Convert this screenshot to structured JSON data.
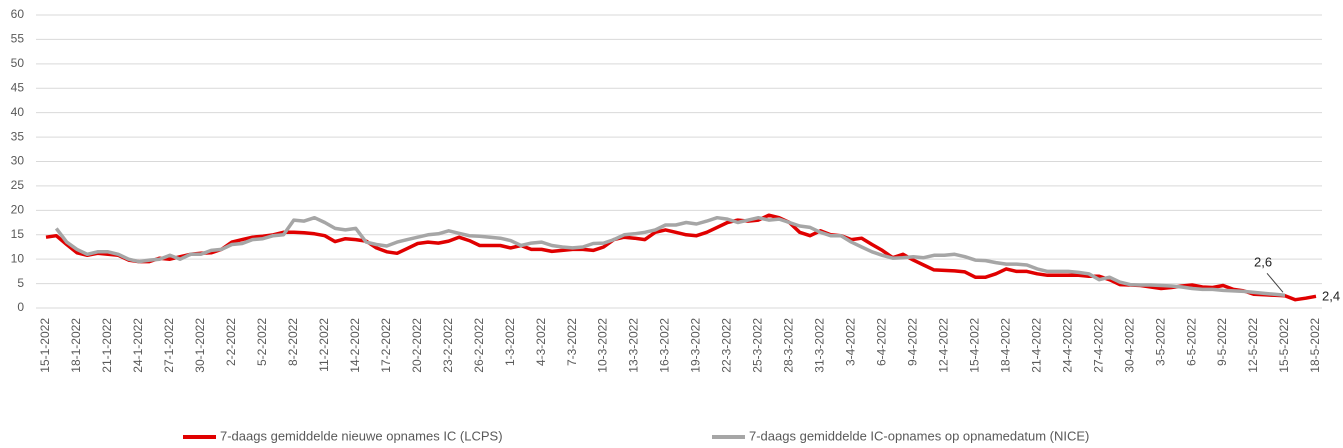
{
  "chart_data": {
    "type": "line",
    "categories": [
      "15-1-2022",
      null,
      null,
      "18-1-2022",
      null,
      null,
      "21-1-2022",
      null,
      null,
      "24-1-2022",
      null,
      null,
      "27-1-2022",
      null,
      null,
      "30-1-2022",
      null,
      null,
      "2-2-2022",
      null,
      null,
      "5-2-2022",
      null,
      null,
      "8-2-2022",
      null,
      null,
      "11-2-2022",
      null,
      null,
      "14-2-2022",
      null,
      null,
      "17-2-2022",
      null,
      null,
      "20-2-2022",
      null,
      null,
      "23-2-2022",
      null,
      null,
      "26-2-2022",
      null,
      null,
      "1-3-2022",
      null,
      null,
      "4-3-2022",
      null,
      null,
      "7-3-2022",
      null,
      null,
      "10-3-2022",
      null,
      null,
      "13-3-2022",
      null,
      null,
      "16-3-2022",
      null,
      null,
      "19-3-2022",
      null,
      null,
      "22-3-2022",
      null,
      null,
      "25-3-2022",
      null,
      null,
      "28-3-2022",
      null,
      null,
      "31-3-2022",
      null,
      null,
      "3-4-2022",
      null,
      null,
      "6-4-2022",
      null,
      null,
      "9-4-2022",
      null,
      null,
      "12-4-2022",
      null,
      null,
      "15-4-2022",
      null,
      null,
      "18-4-2022",
      null,
      null,
      "21-4-2022",
      null,
      null,
      "24-4-2022",
      null,
      null,
      "27-4-2022",
      null,
      null,
      "30-4-2022",
      null,
      null,
      "3-5-2022",
      null,
      null,
      "6-5-2022",
      null,
      null,
      "9-5-2022",
      null,
      null,
      "12-5-2022",
      null,
      null,
      "15-5-2022",
      null,
      null,
      "18-5-2022"
    ],
    "series": [
      {
        "name": "7-daags gemiddelde nieuwe opnames IC (LCPS)",
        "color": "#e00000",
        "values": [
          14.5,
          14.8,
          13,
          11.3,
          10.8,
          11.2,
          11,
          10.8,
          9.8,
          9.5,
          9.5,
          10.2,
          10,
          10.5,
          11,
          11.2,
          11.3,
          12,
          13.5,
          14,
          14.5,
          14.7,
          15,
          15.5,
          15.5,
          15.4,
          15.2,
          14.8,
          13.6,
          14.2,
          14,
          13.7,
          12.3,
          11.5,
          11.2,
          12.2,
          13.2,
          13.5,
          13.3,
          13.7,
          14.5,
          13.8,
          12.8,
          12.8,
          12.8,
          12.3,
          12.8,
          12,
          12,
          11.6,
          11.8,
          12,
          12,
          11.8,
          12.5,
          14,
          14.5,
          14.3,
          14,
          15.5,
          16,
          15.5,
          15,
          14.8,
          15.5,
          16.5,
          17.5,
          18,
          17.8,
          18,
          19,
          18.5,
          17.5,
          15.5,
          14.8,
          15.8,
          15,
          14.8,
          14,
          14.3,
          13,
          11.8,
          10.3,
          11,
          9.8,
          8.8,
          7.8,
          7.7,
          7.6,
          7.4,
          6.3,
          6.3,
          7,
          8,
          7.5,
          7.5,
          7,
          6.7,
          6.7,
          6.7,
          6.7,
          6.5,
          6.5,
          5.8,
          4.8,
          4.7,
          4.6,
          4.3,
          4,
          4.2,
          4.5,
          4.7,
          4.3,
          4.2,
          4.6,
          3.8,
          3.5,
          2.8,
          2.7,
          2.6,
          2.5,
          1.7,
          2,
          2.4
        ],
        "value_labels": {
          "123": "2,4"
        }
      },
      {
        "name": "7-daags gemiddelde IC-opnames op opnamedatum (NICE)",
        "color": "#a6a6a6",
        "values": [
          null,
          16.3,
          13.5,
          12,
          11,
          11.5,
          11.5,
          11,
          10,
          9.5,
          9.8,
          10,
          10.8,
          10,
          11,
          11,
          11.8,
          12,
          13,
          13.2,
          14,
          14.2,
          14.8,
          15,
          18,
          17.8,
          18.5,
          17.5,
          16.3,
          16,
          16.3,
          13.5,
          13,
          12.7,
          13.5,
          14,
          14.5,
          15,
          15.2,
          15.8,
          15.3,
          14.8,
          14.7,
          14.5,
          14.3,
          13.8,
          12.8,
          13.3,
          13.5,
          12.8,
          12.5,
          12.3,
          12.5,
          13.2,
          13.3,
          14,
          15,
          15.2,
          15.5,
          16,
          17,
          17,
          17.5,
          17.2,
          17.8,
          18.5,
          18.2,
          17.5,
          18,
          18.5,
          18,
          18.2,
          17.5,
          16.8,
          16.5,
          15.5,
          14.8,
          14.8,
          13.5,
          12.5,
          11.5,
          10.8,
          10.2,
          10.3,
          10.5,
          10.3,
          10.8,
          10.8,
          11,
          10.5,
          9.8,
          9.7,
          9.3,
          9,
          9,
          8.8,
          8,
          7.5,
          7.5,
          7.5,
          7.3,
          7,
          5.8,
          6.3,
          5.3,
          4.8,
          4.7,
          4.7,
          4.6,
          4.5,
          4.3,
          4,
          3.8,
          3.8,
          3.6,
          3.5,
          3.4,
          3.2,
          3,
          2.8,
          2.6,
          null,
          null,
          null
        ],
        "value_labels": {
          "120": "2,6"
        }
      }
    ],
    "ylim": [
      0,
      60
    ],
    "yticks": [
      0,
      5,
      10,
      15,
      20,
      25,
      30,
      35,
      40,
      45,
      50,
      55,
      60
    ],
    "grid": true
  }
}
